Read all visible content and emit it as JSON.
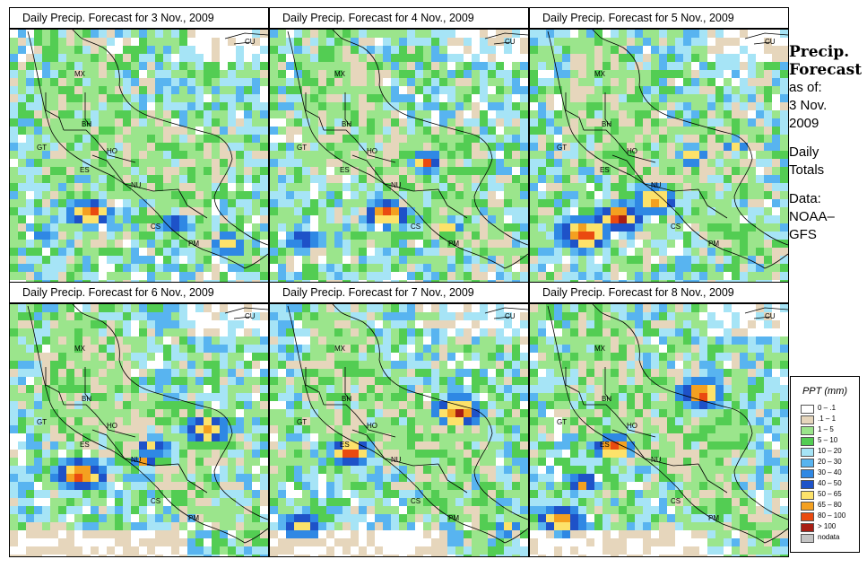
{
  "panels": [
    {
      "title": "Daily Precip. Forecast for  3 Nov., 2009"
    },
    {
      "title": "Daily Precip. Forecast for  4 Nov., 2009"
    },
    {
      "title": "Daily Precip. Forecast for  5 Nov., 2009"
    },
    {
      "title": "Daily Precip. Forecast for  6 Nov., 2009"
    },
    {
      "title": "Daily Precip. Forecast for  7 Nov., 2009"
    },
    {
      "title": "Daily Precip. Forecast for  8 Nov., 2009"
    }
  ],
  "country_labels": [
    "MX",
    "CU",
    "BH",
    "GT",
    "HO",
    "ES",
    "NU",
    "CS",
    "PM"
  ],
  "sidebar": {
    "heading_line1": "Precip.",
    "heading_line2": "Forecast",
    "asof_line1": "as of:",
    "asof_line2": "3 Nov.",
    "asof_line3": "2009",
    "daily_line1": "Daily",
    "daily_line2": "Totals",
    "data_line1": "Data:",
    "data_line2": "NOAA–",
    "data_line3": "GFS"
  },
  "legend": {
    "title": "PPT (mm)",
    "items": [
      {
        "label": "0 – .1",
        "color": "#ffffff"
      },
      {
        "label": ".1 – 1",
        "color": "#e6d6bc"
      },
      {
        "label": "1 – 5",
        "color": "#9be58c"
      },
      {
        "label": "5 – 10",
        "color": "#53cd53"
      },
      {
        "label": "10 – 20",
        "color": "#a6e4f6"
      },
      {
        "label": "20 – 30",
        "color": "#58b4f0"
      },
      {
        "label": "30 – 40",
        "color": "#2f88e4"
      },
      {
        "label": "40 – 50",
        "color": "#1e52c8"
      },
      {
        "label": "50 – 65",
        "color": "#fde26a"
      },
      {
        "label": "65 – 80",
        "color": "#f4a020"
      },
      {
        "label": "80 – 100",
        "color": "#ea4a10"
      },
      {
        "label": "> 100",
        "color": "#a81e14"
      },
      {
        "label": "nodata",
        "color": "#c4c4c4"
      }
    ]
  }
}
